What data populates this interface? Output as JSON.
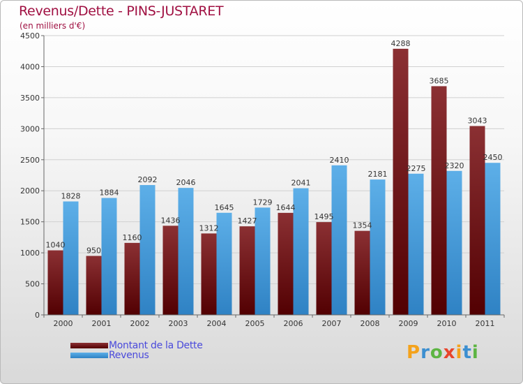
{
  "header": {
    "title": "Revenus/Dette - PINS-JUSTARET",
    "subtitle": "(en milliers d'€)"
  },
  "colors": {
    "dette_top": "#8b3033",
    "dette_bottom": "#520002",
    "revenus_top": "#5dafe8",
    "revenus_bottom": "#2f82c4",
    "axis": "#666666",
    "grid": "#d0d0d0"
  },
  "chart_data": {
    "type": "bar",
    "title": "Revenus/Dette - PINS-JUSTARET",
    "ylabel": "(en milliers d'€)",
    "xlabel": "",
    "ylim": [
      0,
      4500
    ],
    "yticks": [
      0,
      500,
      1000,
      1500,
      2000,
      2500,
      3000,
      3500,
      4000,
      4500
    ],
    "categories": [
      "2000",
      "2001",
      "2002",
      "2003",
      "2004",
      "2005",
      "2006",
      "2007",
      "2008",
      "2009",
      "2010",
      "2011"
    ],
    "series": [
      {
        "name": "Montant de la Dette",
        "values": [
          1040,
          950,
          1160,
          1436,
          1312,
          1427,
          1644,
          1495,
          1354,
          4288,
          3685,
          3043
        ]
      },
      {
        "name": "Revenus",
        "values": [
          1828,
          1884,
          2092,
          2046,
          1645,
          1729,
          2041,
          2410,
          2181,
          2275,
          2320,
          2450
        ]
      }
    ],
    "legend": "bottom-left"
  },
  "legend": {
    "dette_label": "Montant de la Dette",
    "revenus_label": "Revenus"
  },
  "logo": {
    "text": "Proxiti",
    "letters": [
      {
        "ch": "P",
        "color": "#f4a21b"
      },
      {
        "ch": "r",
        "color": "#3c8fd0"
      },
      {
        "ch": "o",
        "color": "#5db543"
      },
      {
        "ch": "x",
        "color": "#e8452c"
      },
      {
        "ch": "i",
        "color": "#f4a21b"
      },
      {
        "ch": "t",
        "color": "#3c8fd0"
      },
      {
        "ch": "i",
        "color": "#5db543"
      }
    ]
  }
}
